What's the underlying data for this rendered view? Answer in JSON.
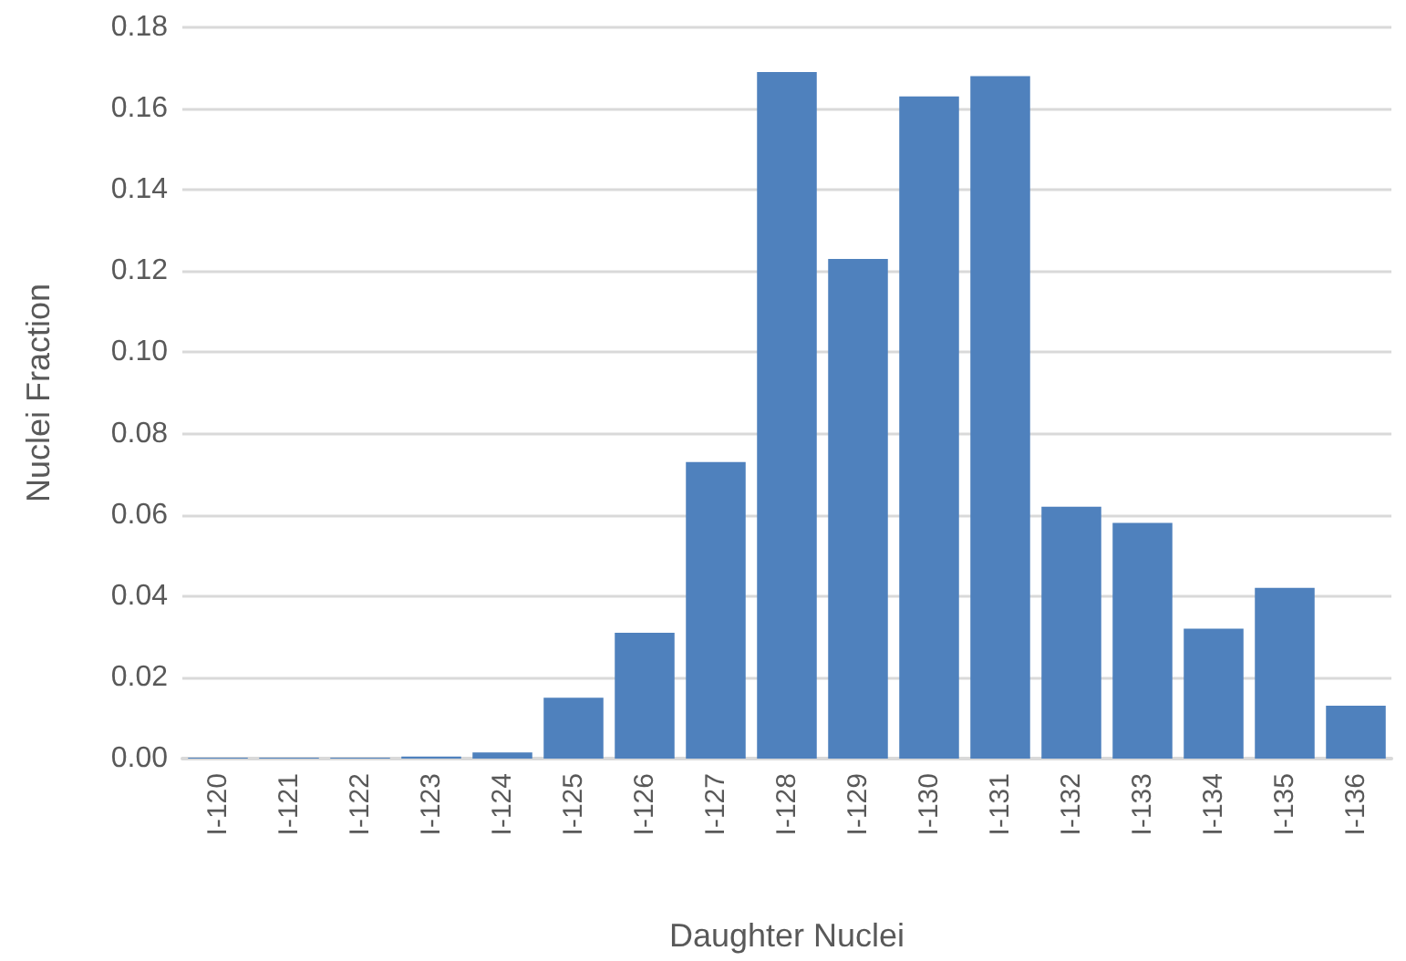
{
  "chart_data": {
    "type": "bar",
    "xlabel": "Daughter Nuclei",
    "ylabel": "Nuclei Fraction",
    "categories": [
      "I-120",
      "I-121",
      "I-122",
      "I-123",
      "I-124",
      "I-125",
      "I-126",
      "I-127",
      "I-128",
      "I-129",
      "I-130",
      "I-131",
      "I-132",
      "I-133",
      "I-134",
      "I-135",
      "I-136"
    ],
    "values": [
      0.0002,
      0.0002,
      0.0002,
      0.0005,
      0.0015,
      0.015,
      0.031,
      0.073,
      0.169,
      0.123,
      0.163,
      0.168,
      0.062,
      0.058,
      0.032,
      0.042,
      0.013
    ],
    "color": "#4f81bd",
    "ylim": [
      0,
      0.18
    ],
    "yticks": [
      {
        "value": 0,
        "label": "0.00"
      },
      {
        "value": 0.02,
        "label": "0.02"
      },
      {
        "value": 0.04,
        "label": "0.04"
      },
      {
        "value": 0.06,
        "label": "0.06"
      },
      {
        "value": 0.08,
        "label": "0.08"
      },
      {
        "value": 0.1,
        "label": "0.10"
      },
      {
        "value": 0.12,
        "label": "0.12"
      },
      {
        "value": 0.14,
        "label": "0.14"
      },
      {
        "value": 0.16,
        "label": "0.16"
      },
      {
        "value": 0.18,
        "label": "0.18"
      }
    ],
    "grid": "y"
  }
}
